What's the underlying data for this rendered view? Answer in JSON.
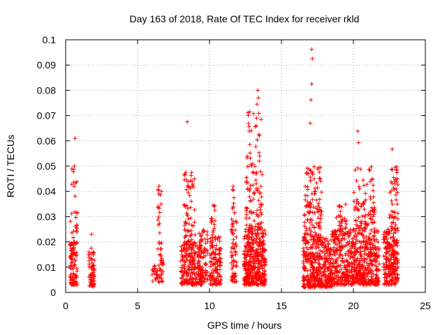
{
  "chart_data": {
    "type": "scatter",
    "title": "Day 163 of 2018, Rate Of TEC Index for receiver rkld",
    "xlabel": "GPS time / hours",
    "ylabel": "ROTI / TECUs",
    "xlim": [
      0,
      25
    ],
    "ylim": [
      0,
      0.1
    ],
    "grid": true,
    "marker": "+",
    "marker_color": "#ff0000",
    "x_ticks": [
      "0",
      "5",
      "10",
      "15",
      "20",
      "25"
    ],
    "y_ticks": [
      "0",
      "0.01",
      "0.02",
      "0.03",
      "0.04",
      "0.05",
      "0.06",
      "0.07",
      "0.08",
      "0.09",
      "0.1"
    ],
    "clusters": [
      {
        "x_range": [
          0.3,
          0.8
        ],
        "y_range": [
          0.003,
          0.02
        ],
        "count": 90
      },
      {
        "x_range": [
          0.3,
          0.8
        ],
        "y_range": [
          0.02,
          0.05
        ],
        "count": 25
      },
      {
        "x_range": [
          1.6,
          2.0
        ],
        "y_range": [
          0.002,
          0.018
        ],
        "count": 60
      },
      {
        "x_range": [
          6.0,
          6.8
        ],
        "y_range": [
          0.004,
          0.012
        ],
        "count": 40
      },
      {
        "x_range": [
          6.4,
          6.7
        ],
        "y_range": [
          0.012,
          0.044
        ],
        "count": 30
      },
      {
        "x_range": [
          8.0,
          9.5
        ],
        "y_range": [
          0.003,
          0.02
        ],
        "count": 220
      },
      {
        "x_range": [
          8.2,
          9.0
        ],
        "y_range": [
          0.02,
          0.049
        ],
        "count": 60
      },
      {
        "x_range": [
          9.2,
          9.9
        ],
        "y_range": [
          0.004,
          0.025
        ],
        "count": 70
      },
      {
        "x_range": [
          10.0,
          10.8
        ],
        "y_range": [
          0.003,
          0.022
        ],
        "count": 120
      },
      {
        "x_range": [
          10.1,
          10.4
        ],
        "y_range": [
          0.022,
          0.035
        ],
        "count": 15
      },
      {
        "x_range": [
          11.5,
          11.9
        ],
        "y_range": [
          0.004,
          0.03
        ],
        "count": 60
      },
      {
        "x_range": [
          11.6,
          11.8
        ],
        "y_range": [
          0.03,
          0.043
        ],
        "count": 10
      },
      {
        "x_range": [
          12.4,
          13.9
        ],
        "y_range": [
          0.003,
          0.025
        ],
        "count": 380
      },
      {
        "x_range": [
          12.5,
          13.7
        ],
        "y_range": [
          0.025,
          0.05
        ],
        "count": 80
      },
      {
        "x_range": [
          12.6,
          13.6
        ],
        "y_range": [
          0.05,
          0.072
        ],
        "count": 25
      },
      {
        "x_range": [
          16.5,
          18.5
        ],
        "y_range": [
          0.002,
          0.022
        ],
        "count": 380
      },
      {
        "x_range": [
          16.6,
          17.8
        ],
        "y_range": [
          0.022,
          0.05
        ],
        "count": 110
      },
      {
        "x_range": [
          18.5,
          20.0
        ],
        "y_range": [
          0.003,
          0.025
        ],
        "count": 260
      },
      {
        "x_range": [
          18.8,
          19.6
        ],
        "y_range": [
          0.025,
          0.035
        ],
        "count": 25
      },
      {
        "x_range": [
          20.0,
          21.8
        ],
        "y_range": [
          0.003,
          0.025
        ],
        "count": 340
      },
      {
        "x_range": [
          20.0,
          21.5
        ],
        "y_range": [
          0.025,
          0.05
        ],
        "count": 90
      },
      {
        "x_range": [
          22.1,
          23.1
        ],
        "y_range": [
          0.003,
          0.025
        ],
        "count": 220
      },
      {
        "x_range": [
          22.5,
          23.1
        ],
        "y_range": [
          0.025,
          0.05
        ],
        "count": 50
      }
    ],
    "outliers": [
      {
        "x": 0.65,
        "y": 0.061
      },
      {
        "x": 0.6,
        "y": 0.05
      },
      {
        "x": 1.8,
        "y": 0.023
      },
      {
        "x": 8.45,
        "y": 0.0675
      },
      {
        "x": 13.35,
        "y": 0.08
      },
      {
        "x": 13.4,
        "y": 0.077
      },
      {
        "x": 13.3,
        "y": 0.0745
      },
      {
        "x": 13.25,
        "y": 0.066
      },
      {
        "x": 12.9,
        "y": 0.064
      },
      {
        "x": 12.8,
        "y": 0.0715
      },
      {
        "x": 17.1,
        "y": 0.0962
      },
      {
        "x": 17.15,
        "y": 0.0925
      },
      {
        "x": 17.1,
        "y": 0.0825
      },
      {
        "x": 17.05,
        "y": 0.0762
      },
      {
        "x": 17.0,
        "y": 0.067
      },
      {
        "x": 20.3,
        "y": 0.0638
      },
      {
        "x": 20.35,
        "y": 0.0593
      },
      {
        "x": 22.7,
        "y": 0.0567
      }
    ]
  }
}
